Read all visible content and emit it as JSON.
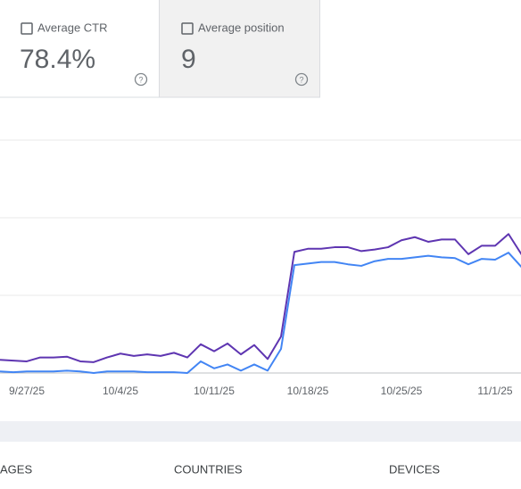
{
  "cards": [
    {
      "label": "Average CTR",
      "value": "78.4%"
    },
    {
      "label": "Average position",
      "value": "9"
    }
  ],
  "chart_data": {
    "type": "line",
    "x": [
      null,
      null,
      "9/27/25",
      null,
      null,
      null,
      null,
      null,
      null,
      "10/4/25",
      null,
      null,
      null,
      null,
      null,
      null,
      "10/11/25",
      null,
      null,
      null,
      null,
      null,
      null,
      "10/18/25",
      null,
      null,
      null,
      null,
      null,
      null,
      "10/25/25",
      null,
      null,
      null,
      null,
      null,
      null,
      "11/1/25",
      null,
      null
    ],
    "series": [
      {
        "color": "#5e35b1",
        "values": [
          0.17,
          0.16,
          0.15,
          0.2,
          0.2,
          0.21,
          0.15,
          0.14,
          0.2,
          0.25,
          0.22,
          0.24,
          0.22,
          0.26,
          0.2,
          0.37,
          0.28,
          0.38,
          0.24,
          0.36,
          0.18,
          0.47,
          1.56,
          1.6,
          1.6,
          1.62,
          1.62,
          1.57,
          1.59,
          1.62,
          1.71,
          1.75,
          1.69,
          1.72,
          1.72,
          1.53,
          1.64,
          1.64,
          1.79,
          1.52
        ]
      },
      {
        "color": "#4285f4",
        "values": [
          0.02,
          0.01,
          0.02,
          0.02,
          0.02,
          0.03,
          0.02,
          0,
          0.02,
          0.02,
          0.02,
          0.01,
          0.01,
          0.01,
          0,
          0.15,
          0.06,
          0.11,
          0.03,
          0.11,
          0.03,
          0.31,
          1.39,
          1.41,
          1.43,
          1.43,
          1.4,
          1.38,
          1.44,
          1.47,
          1.47,
          1.49,
          1.51,
          1.49,
          1.48,
          1.4,
          1.47,
          1.46,
          1.55,
          1.36
        ]
      }
    ],
    "ylim": [
      0,
      3
    ]
  },
  "tabs": [
    "AGES",
    "COUNTRIES",
    "DEVICES"
  ]
}
